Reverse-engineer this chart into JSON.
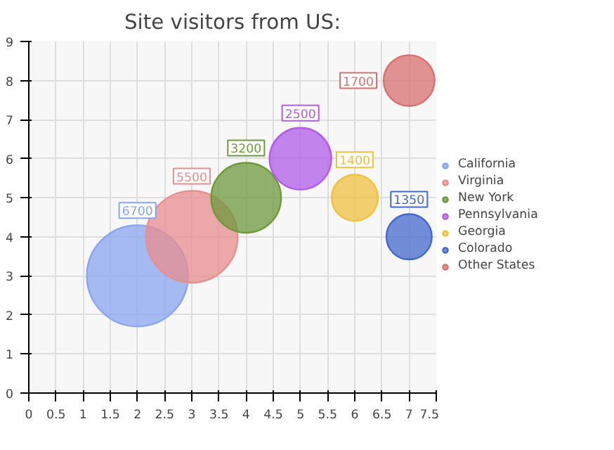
{
  "chart_data": {
    "type": "bubble",
    "title": "Site visitors from US:",
    "series": [
      {
        "name": "California",
        "color": "#8aa4f0",
        "x": [
          2
        ],
        "values": [
          3
        ],
        "sizes": [
          6700
        ],
        "value_labels": [
          "6700"
        ]
      },
      {
        "name": "Virginia",
        "color": "#e88e8e",
        "x": [
          3
        ],
        "values": [
          4
        ],
        "sizes": [
          5500
        ],
        "value_labels": [
          "5500"
        ]
      },
      {
        "name": "New York",
        "color": "#6e9a3c",
        "x": [
          4
        ],
        "values": [
          5
        ],
        "sizes": [
          3200
        ],
        "value_labels": [
          "3200"
        ]
      },
      {
        "name": "Pennsylvania",
        "color": "#b25ce8",
        "x": [
          5
        ],
        "values": [
          6
        ],
        "sizes": [
          2500
        ],
        "value_labels": [
          "2500"
        ]
      },
      {
        "name": "Georgia",
        "color": "#f0c040",
        "x": [
          6
        ],
        "values": [
          5
        ],
        "sizes": [
          1400
        ],
        "value_labels": [
          "1400"
        ]
      },
      {
        "name": "Colorado",
        "color": "#4469cc",
        "x": [
          7
        ],
        "values": [
          4
        ],
        "sizes": [
          1350
        ],
        "value_labels": [
          "1350"
        ]
      },
      {
        "name": "Other States",
        "color": "#d87070",
        "x": [
          7
        ],
        "values": [
          8
        ],
        "sizes": [
          1700
        ],
        "value_labels": [
          "1700"
        ]
      }
    ],
    "xlim": [
      0,
      7.5
    ],
    "ylim": [
      0,
      9
    ],
    "xticks": [
      0,
      0.5,
      1,
      1.5,
      2,
      2.5,
      3,
      3.5,
      4,
      4.5,
      5,
      5.5,
      6,
      6.5,
      7,
      7.5
    ],
    "yticks": [
      0,
      1,
      2,
      3,
      4,
      5,
      6,
      7,
      8,
      9
    ],
    "grid": true,
    "legend": "right"
  }
}
